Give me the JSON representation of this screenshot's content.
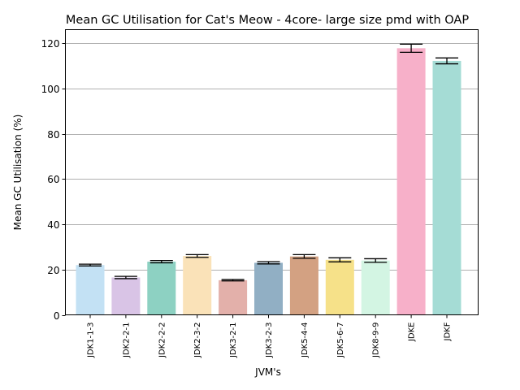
{
  "chart_data": {
    "type": "bar",
    "title": "Mean GC Utilisation for Cat's Meow - 4core- large size pmd with OAP",
    "xlabel": "JVM's",
    "ylabel": "Mean GC Utilisation (%)",
    "ylim": [
      0,
      126
    ],
    "yticks": [
      0,
      20,
      40,
      60,
      80,
      100,
      120
    ],
    "grid": "horizontal",
    "categories": [
      "JDK1-1-3",
      "JDK2-2-1",
      "JDK2-2-2",
      "JDK2-3-2",
      "JDK3-2-1",
      "JDK3-2-3",
      "JDK5-4-4",
      "JDK5-6-7",
      "JDK8-9-9",
      "JDKE",
      "JDKF"
    ],
    "values": [
      22.0,
      16.5,
      23.5,
      26.0,
      15.3,
      23.0,
      25.8,
      24.3,
      24.0,
      117.8,
      112.2
    ],
    "errors": [
      0.4,
      0.5,
      0.5,
      0.6,
      0.3,
      0.5,
      0.8,
      0.9,
      0.8,
      1.8,
      1.3
    ],
    "colors": [
      "#c3e1f4",
      "#d9c4e6",
      "#8dd1c2",
      "#fae2b8",
      "#e3b0aa",
      "#91afc4",
      "#d3a182",
      "#f6e189",
      "#d3f5e3",
      "#f7b0c9",
      "#a5dcd5"
    ]
  }
}
